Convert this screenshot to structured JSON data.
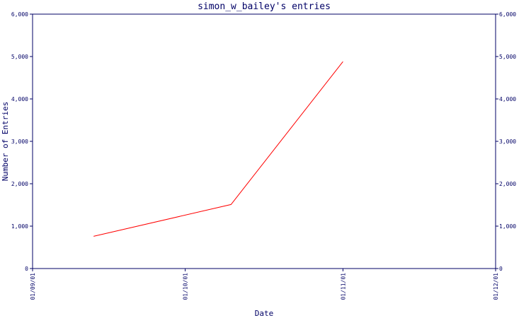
{
  "chart_data": {
    "type": "line",
    "title": "simon_w_bailey's entries",
    "xlabel": "Date",
    "ylabel": "Number of Entries",
    "x_ticks": [
      "01/09/01",
      "01/10/01",
      "01/11/01",
      "01/12/01"
    ],
    "y_ticks": [
      "0",
      "1,000",
      "2,000",
      "3,000",
      "4,000",
      "5,000",
      "6,000"
    ],
    "ylim": [
      0,
      6000
    ],
    "xlim": [
      "01/09/01",
      "01/12/01"
    ],
    "grid": false,
    "series": [
      {
        "x": [
          "2001-09-13",
          "2001-10-10",
          "2001-11-01"
        ],
        "values": [
          760,
          1510,
          4880
        ]
      }
    ],
    "colors": {
      "axis": "#000066",
      "series": "#ff0000"
    }
  }
}
